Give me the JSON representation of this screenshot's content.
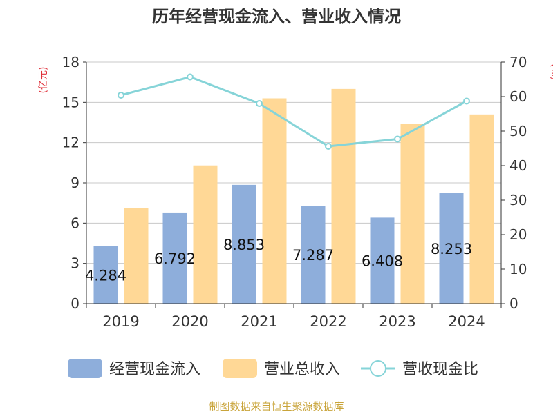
{
  "chart_data": {
    "type": "bar",
    "title": "历年经营现金流入、营业收入情况",
    "left_axis_unit": "(亿元)",
    "right_axis_unit": "(%)",
    "categories": [
      "2019",
      "2020",
      "2021",
      "2022",
      "2023",
      "2024"
    ],
    "series": [
      {
        "name": "经营现金流入",
        "type": "bar",
        "axis": "left",
        "color": "#8eaedb",
        "values": [
          4.284,
          6.792,
          8.853,
          7.287,
          6.408,
          8.253
        ],
        "labels": [
          "4.284",
          "6.792",
          "8.853",
          "7.287",
          "6.408",
          "8.253"
        ]
      },
      {
        "name": "营业总收入",
        "type": "bar",
        "axis": "left",
        "color": "#ffd896",
        "values": [
          7.1,
          10.3,
          15.3,
          16.0,
          13.4,
          14.1
        ]
      },
      {
        "name": "营收现金比",
        "type": "line",
        "axis": "right",
        "color": "#86d4d8",
        "values": [
          60.4,
          65.7,
          58.0,
          45.6,
          47.7,
          58.7
        ]
      }
    ],
    "left_axis": {
      "min": 0,
      "max": 18,
      "ticks": [
        "0",
        "3",
        "6",
        "9",
        "12",
        "15",
        "18"
      ]
    },
    "right_axis": {
      "min": 0,
      "max": 70,
      "ticks": [
        "0",
        "10",
        "20",
        "30",
        "40",
        "50",
        "60",
        "70"
      ]
    },
    "grid": true,
    "legend_position": "bottom"
  },
  "source_text": "制图数据来自恒生聚源数据库",
  "colors": {
    "title": "#333333",
    "axis": "#333333",
    "unit": "#e0303a",
    "grid": "#c8c8c8",
    "source": "#c9a43a"
  }
}
